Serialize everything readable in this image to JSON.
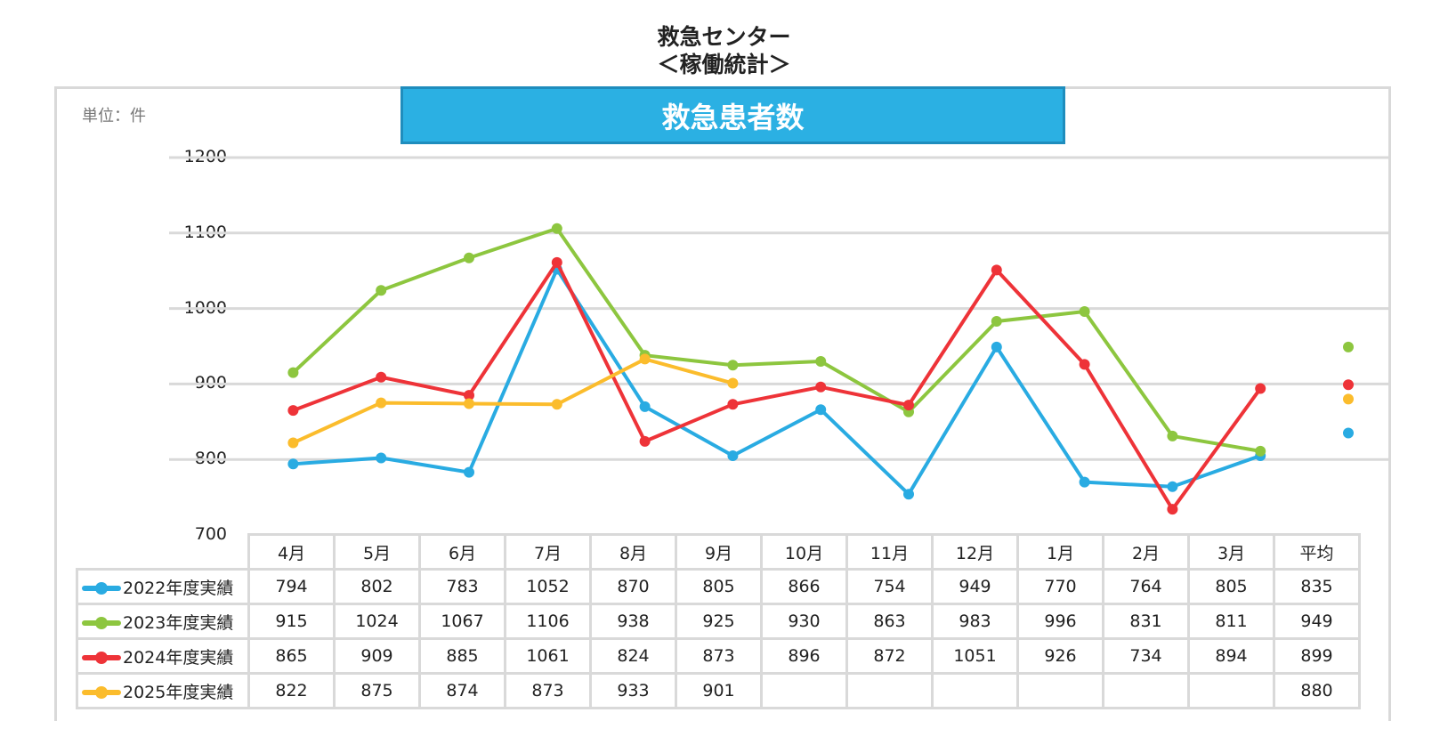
{
  "title": {
    "line1": "救急センター",
    "line2": "＜稼働統計＞"
  },
  "banner": "救急患者数",
  "unit_label": "単位：件",
  "chart_data": {
    "type": "line",
    "title": "救急患者数",
    "ylabel": "単位：件",
    "ylim": [
      700,
      1200
    ],
    "yticks": [
      "1200",
      "1100",
      "1000",
      "900",
      "800",
      "700"
    ],
    "grid": true,
    "legend": "table-left",
    "categories": [
      "4月",
      "5月",
      "6月",
      "7月",
      "8月",
      "9月",
      "10月",
      "11月",
      "12月",
      "1月",
      "2月",
      "3月"
    ],
    "average_label": "平均",
    "series": [
      {
        "name": "2022年度実績",
        "color": "#29abe2",
        "values": [
          794,
          802,
          783,
          1052,
          870,
          805,
          866,
          754,
          949,
          770,
          764,
          805
        ],
        "average": 835
      },
      {
        "name": "2023年度実績",
        "color": "#8dc63f",
        "values": [
          915,
          1024,
          1067,
          1106,
          938,
          925,
          930,
          863,
          983,
          996,
          831,
          811
        ],
        "average": 949
      },
      {
        "name": "2024年度実績",
        "color": "#ee3338",
        "values": [
          865,
          909,
          885,
          1061,
          824,
          873,
          896,
          872,
          1051,
          926,
          734,
          894
        ],
        "average": 899
      },
      {
        "name": "2025年度実績",
        "color": "#fbbc2c",
        "values": [
          822,
          875,
          874,
          873,
          933,
          901,
          null,
          null,
          null,
          null,
          null,
          null
        ],
        "average": 880
      }
    ]
  }
}
